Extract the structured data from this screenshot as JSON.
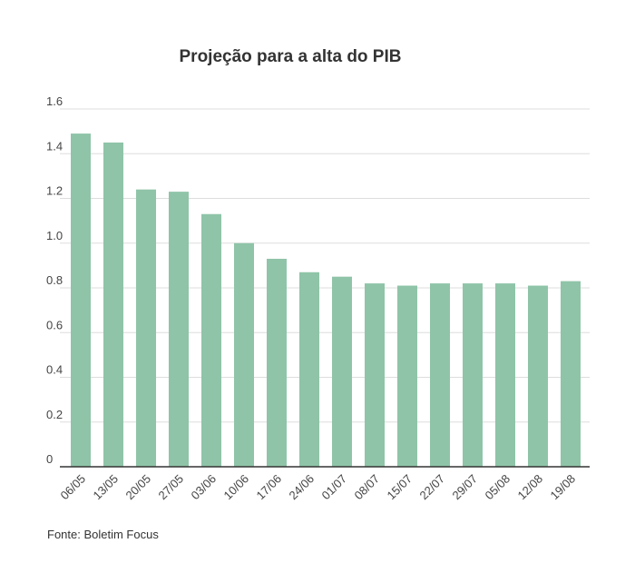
{
  "chart_data": {
    "type": "bar",
    "title": "Projeção para a alta do PIB",
    "categories": [
      "06/05",
      "13/05",
      "20/05",
      "27/05",
      "03/06",
      "10/06",
      "17/06",
      "24/06",
      "01/07",
      "08/07",
      "15/07",
      "22/07",
      "29/07",
      "05/08",
      "12/08",
      "19/08"
    ],
    "values": [
      1.49,
      1.45,
      1.24,
      1.23,
      1.13,
      1.0,
      0.93,
      0.87,
      0.85,
      0.82,
      0.81,
      0.82,
      0.82,
      0.82,
      0.81,
      0.83
    ],
    "yticks": [
      "0",
      "0.2",
      "0.4",
      "0.6",
      "0.8",
      "1.0",
      "1.2",
      "1.4",
      "1.6"
    ],
    "ylim": [
      0,
      1.6
    ],
    "grid": true,
    "bar_color": "#8fc4a8",
    "xlabel": "",
    "ylabel": ""
  },
  "source": "Fonte: Boletim Focus"
}
